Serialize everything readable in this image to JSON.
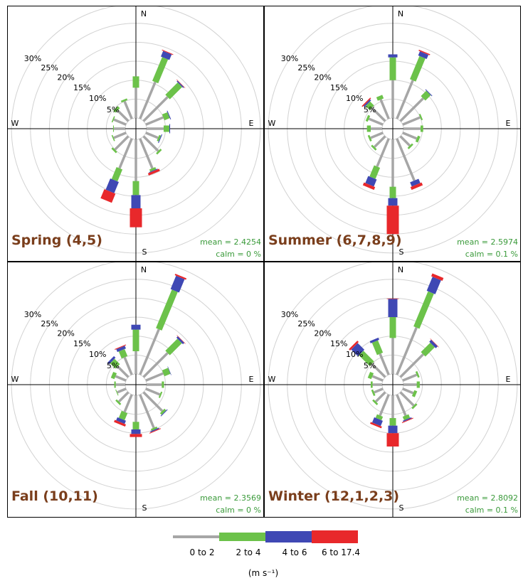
{
  "chart_data": {
    "type": "windrose",
    "directions": [
      "N",
      "NNE",
      "NE",
      "ENE",
      "E",
      "ESE",
      "SE",
      "SSE",
      "S",
      "SSW",
      "SW",
      "WSW",
      "W",
      "WNW",
      "NW",
      "NNW"
    ],
    "speed_bins": [
      {
        "label": "0 to 2",
        "color": "#a6a6a6"
      },
      {
        "label": "2 to 4",
        "color": "#6cc24a"
      },
      {
        "label": "4 to 6",
        "color": "#3f48b4"
      },
      {
        "label": "6 to 17.4",
        "color": "#e8282b"
      }
    ],
    "unit_label": "(m s⁻¹)",
    "rings_percent": [
      5,
      10,
      15,
      20,
      25,
      30
    ],
    "ring_labels": [
      "5%",
      "10%",
      "15%",
      "20%",
      "25%",
      "30%"
    ],
    "compass": {
      "n": "N",
      "s": "S",
      "e": "E",
      "w": "W"
    },
    "panels": [
      {
        "title": "Spring (4,5)",
        "mean_text": "mean = 2.4254",
        "calm_text": "calm = 0 %",
        "values": [
          [
            8.0,
            3.0,
            0.0,
            0.0
          ],
          [
            10.5,
            6.8,
            1.6,
            0.2
          ],
          [
            9.0,
            4.6,
            0.3,
            0.1
          ],
          [
            5.0,
            1.5,
            0.2,
            0.0
          ],
          [
            4.5,
            1.5,
            0.2,
            0.0
          ],
          [
            3.5,
            0.5,
            0.2,
            0.0
          ],
          [
            5.5,
            0.5,
            0.0,
            0.0
          ],
          [
            8.5,
            0.6,
            0.2,
            0.6
          ],
          [
            11.0,
            3.7,
            3.5,
            5.0
          ],
          [
            8.5,
            3.4,
            3.2,
            2.6
          ],
          [
            5.0,
            0.5,
            0.0,
            0.0
          ],
          [
            3.5,
            0.3,
            0.0,
            0.0
          ],
          [
            3.0,
            0.2,
            0.0,
            0.0
          ],
          [
            3.5,
            0.3,
            0.0,
            0.0
          ],
          [
            4.0,
            0.8,
            0.0,
            0.0
          ],
          [
            5.0,
            0.5,
            0.0,
            0.0
          ]
        ]
      },
      {
        "title": "Summer (6,7,8,9)",
        "mean_text": "mean = 2.5974",
        "calm_text": "calm = 0.1 %",
        "values": [
          [
            10.0,
            6.0,
            0.8,
            0.0
          ],
          [
            11.0,
            6.6,
            1.2,
            0.3
          ],
          [
            8.5,
            2.0,
            0.2,
            0.0
          ],
          [
            5.0,
            0.4,
            0.0,
            0.0
          ],
          [
            4.5,
            0.7,
            0.0,
            0.0
          ],
          [
            4.0,
            0.7,
            0.0,
            0.0
          ],
          [
            3.5,
            0.5,
            0.0,
            0.0
          ],
          [
            12.0,
            0.0,
            1.2,
            0.8
          ],
          [
            12.5,
            3.0,
            2.0,
            7.5
          ],
          [
            8.0,
            3.2,
            2.0,
            0.8
          ],
          [
            4.0,
            0.5,
            0.0,
            0.0
          ],
          [
            3.5,
            0.5,
            0.0,
            0.0
          ],
          [
            3.0,
            1.0,
            0.0,
            0.0
          ],
          [
            4.0,
            0.6,
            0.0,
            0.0
          ],
          [
            5.0,
            1.5,
            0.4,
            0.3
          ],
          [
            5.5,
            1.0,
            0.0,
            0.0
          ]
        ]
      },
      {
        "title": "Fall (10,11)",
        "mean_text": "mean = 2.3569",
        "calm_text": "calm = 0 %",
        "values": [
          [
            6.0,
            5.7,
            1.3,
            0.0
          ],
          [
            13.0,
            11.0,
            3.8,
            0.4
          ],
          [
            9.0,
            4.5,
            0.5,
            0.1
          ],
          [
            5.0,
            1.7,
            0.1,
            0.0
          ],
          [
            4.0,
            0.6,
            0.0,
            0.0
          ],
          [
            4.0,
            0.4,
            0.0,
            0.0
          ],
          [
            7.0,
            0.6,
            0.2,
            0.0
          ],
          [
            9.5,
            0.5,
            0.3,
            0.2
          ],
          [
            7.0,
            2.0,
            1.2,
            0.8
          ],
          [
            5.0,
            2.0,
            0.9,
            0.6
          ],
          [
            3.5,
            0.5,
            0.0,
            0.0
          ],
          [
            2.5,
            0.2,
            0.0,
            0.0
          ],
          [
            2.5,
            0.4,
            0.0,
            0.0
          ],
          [
            3.0,
            1.0,
            0.0,
            0.0
          ],
          [
            4.0,
            2.0,
            0.6,
            0.0
          ],
          [
            5.0,
            2.0,
            0.8,
            0.2
          ]
        ]
      },
      {
        "title": "Winter (12,1,2,3)",
        "mean_text": "mean = 2.8092",
        "calm_text": "calm = 0.1 %",
        "values": [
          [
            9.5,
            5.5,
            4.8,
            0.1
          ],
          [
            13.5,
            10.0,
            4.0,
            0.8
          ],
          [
            8.5,
            3.5,
            0.7,
            0.1
          ],
          [
            4.0,
            0.5,
            0.0,
            0.0
          ],
          [
            3.5,
            0.8,
            0.0,
            0.0
          ],
          [
            3.0,
            0.8,
            0.0,
            0.0
          ],
          [
            5.0,
            0.5,
            0.0,
            0.0
          ],
          [
            6.0,
            1.0,
            0.3,
            0.2
          ],
          [
            6.0,
            2.0,
            2.0,
            3.5
          ],
          [
            6.0,
            1.0,
            1.5,
            0.5
          ],
          [
            3.5,
            0.5,
            0.0,
            0.0
          ],
          [
            2.5,
            0.5,
            0.0,
            0.0
          ],
          [
            2.5,
            0.5,
            0.0,
            0.0
          ],
          [
            3.0,
            1.0,
            0.0,
            0.0
          ],
          [
            5.0,
            4.0,
            2.5,
            0.5
          ],
          [
            6.0,
            3.5,
            0.6,
            0.0
          ]
        ]
      }
    ]
  }
}
